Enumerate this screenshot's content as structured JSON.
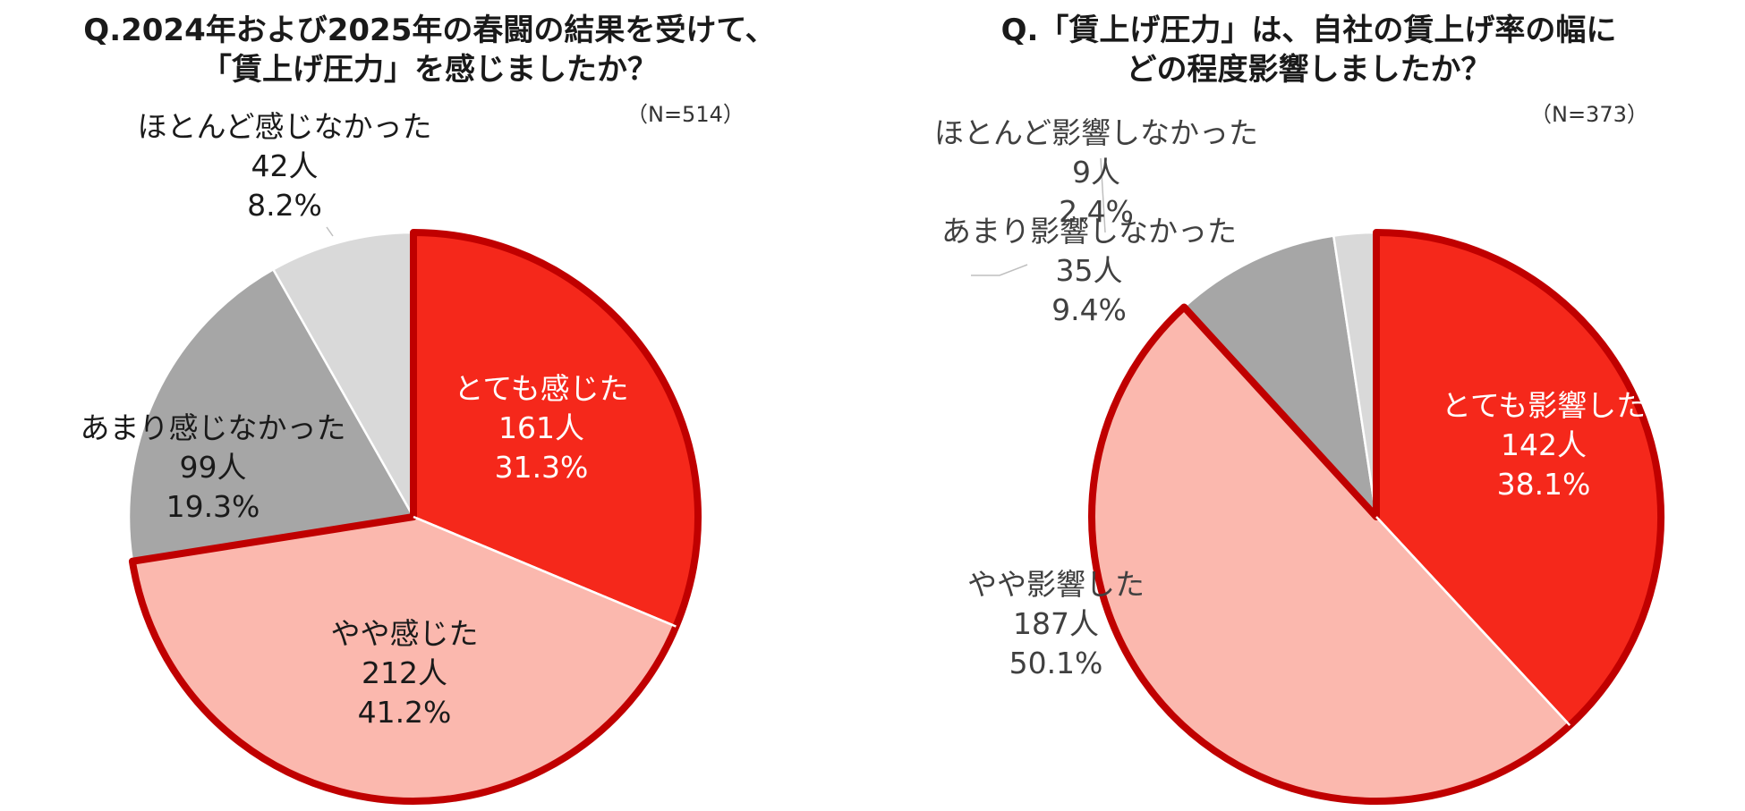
{
  "colors": {
    "very": "#f5281b",
    "somewhat": "#fbb8ae",
    "notmuch": "#a6a6a6",
    "hardly": "#d9d9d9",
    "outline": "#c00000",
    "white_text": "#ffffff",
    "dark_text": "#1a1a1a",
    "gray_text": "#404040"
  },
  "chart_data": [
    {
      "type": "pie",
      "title_lines": [
        "Q.2024年および2025年の春闘の結果を受けて、",
        "「賃上げ圧力」を感じましたか？"
      ],
      "n_label": "（N=514）",
      "slices": [
        {
          "label": "とても感じた",
          "count": "161人",
          "percent": "31.3%",
          "value": 31.3,
          "color_key": "very",
          "text_color_key": "white_text",
          "outlined": true
        },
        {
          "label": "やや感じた",
          "count": "212人",
          "percent": "41.2%",
          "value": 41.2,
          "color_key": "somewhat",
          "text_color_key": "dark_text",
          "outlined": true
        },
        {
          "label": "あまり感じなかった",
          "count": "99人",
          "percent": "19.3%",
          "value": 19.3,
          "color_key": "notmuch",
          "text_color_key": "dark_text",
          "outlined": false
        },
        {
          "label": "ほとんど感じなかった",
          "count": "42人",
          "percent": "8.2%",
          "value": 8.2,
          "color_key": "hardly",
          "text_color_key": "dark_text",
          "outlined": false
        }
      ]
    },
    {
      "type": "pie",
      "title_lines": [
        "Q.「賃上げ圧力」は、自社の賃上げ率の幅に",
        "どの程度影響しましたか？"
      ],
      "n_label": "（N=373）",
      "slices": [
        {
          "label": "とても影響した",
          "count": "142人",
          "percent": "38.1%",
          "value": 38.1,
          "color_key": "very",
          "text_color_key": "white_text",
          "outlined": true
        },
        {
          "label": "やや影響した",
          "count": "187人",
          "percent": "50.1%",
          "value": 50.1,
          "color_key": "somewhat",
          "text_color_key": "gray_text",
          "outlined": true
        },
        {
          "label": "あまり影響しなかった",
          "count": "35人",
          "percent": "9.4%",
          "value": 9.4,
          "color_key": "notmuch",
          "text_color_key": "gray_text",
          "outlined": false
        },
        {
          "label": "ほとんど影響しなかった",
          "count": "9人",
          "percent": "2.4%",
          "value": 2.4,
          "color_key": "hardly",
          "text_color_key": "gray_text",
          "outlined": false
        }
      ]
    }
  ]
}
